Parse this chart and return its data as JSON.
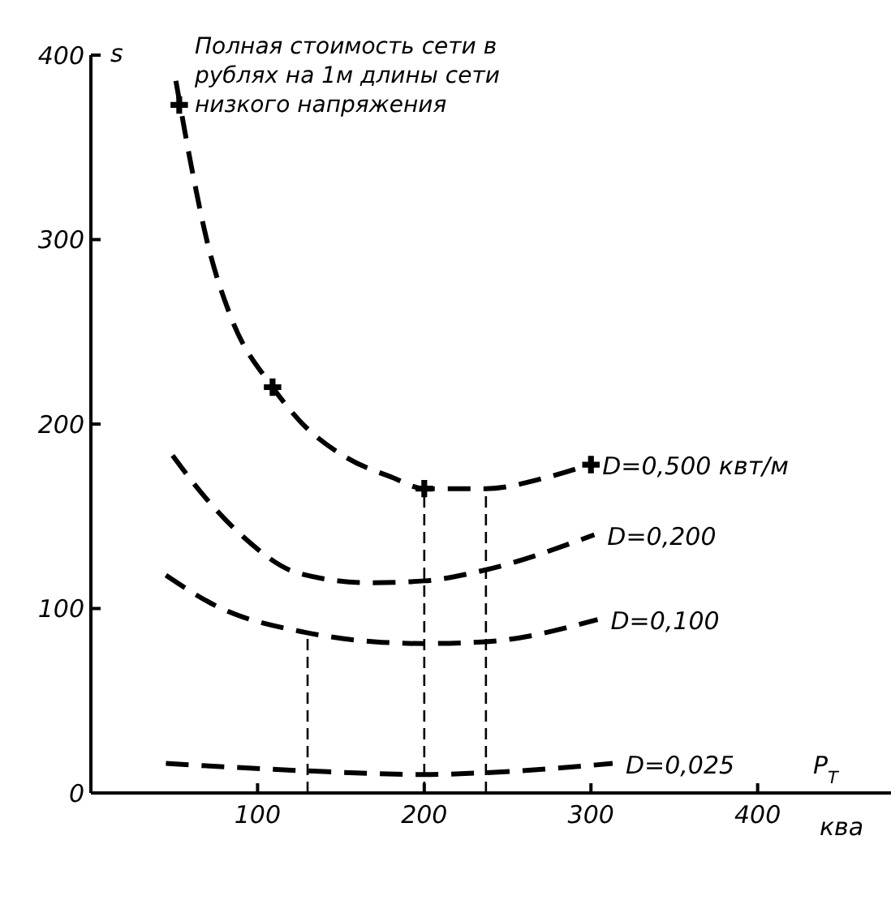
{
  "chart_data": {
    "type": "line",
    "title": "Полная стоимость сети в рублях на 1м длины сети низкого напряжения",
    "xlabel": "P$_{T}$",
    "ylabel": "s",
    "annotations": [
      "ква"
    ],
    "xlim": [
      0,
      480
    ],
    "ylim": [
      0,
      400
    ],
    "xticks": [
      100,
      200,
      300,
      400
    ],
    "yticks": [
      0,
      100,
      200,
      300,
      400
    ],
    "grid": false,
    "legend": false,
    "line_style": "dashed",
    "marker": "none",
    "series": [
      {
        "name": "D=0,500 квт/м",
        "color": "#000000",
        "x": [
          51,
          60,
          70,
          84,
          109,
          125,
          153,
          181,
          200,
          237,
          273,
          299
        ],
        "values": [
          386,
          341,
          298,
          258,
          220,
          202,
          182,
          171,
          165,
          165,
          171,
          178
        ]
      },
      {
        "name": "D=0,200",
        "color": "#000000",
        "x": [
          49,
          66,
          90,
          125,
          167,
          200,
          237,
          302
        ],
        "values": [
          183,
          163,
          140,
          119,
          114,
          115,
          121,
          140
        ]
      },
      {
        "name": "D=0,100",
        "color": "#000000",
        "x": [
          45,
          76,
          129,
          170,
          200,
          237,
          304
        ],
        "values": [
          118,
          101,
          87,
          82,
          81,
          82,
          94
        ]
      },
      {
        "name": "D=0,025",
        "color": "#000000",
        "x": [
          45,
          129,
          200,
          237,
          313
        ],
        "values": [
          16,
          12,
          10,
          11,
          16
        ]
      },
      {
        "type": "scatter",
        "marker": "cross",
        "color": "#000000",
        "x": [
          53,
          109,
          200,
          300
        ],
        "values": [
          373,
          220,
          165,
          178
        ]
      },
      {
        "color": "#000000",
        "x": [
          130,
          130
        ],
        "values": [
          0,
          87
        ]
      },
      {
        "color": "#000000",
        "x": [
          200,
          200
        ],
        "values": [
          0,
          165
        ]
      },
      {
        "color": "#000000",
        "x": [
          237,
          237
        ],
        "values": [
          0,
          165
        ]
      }
    ]
  }
}
